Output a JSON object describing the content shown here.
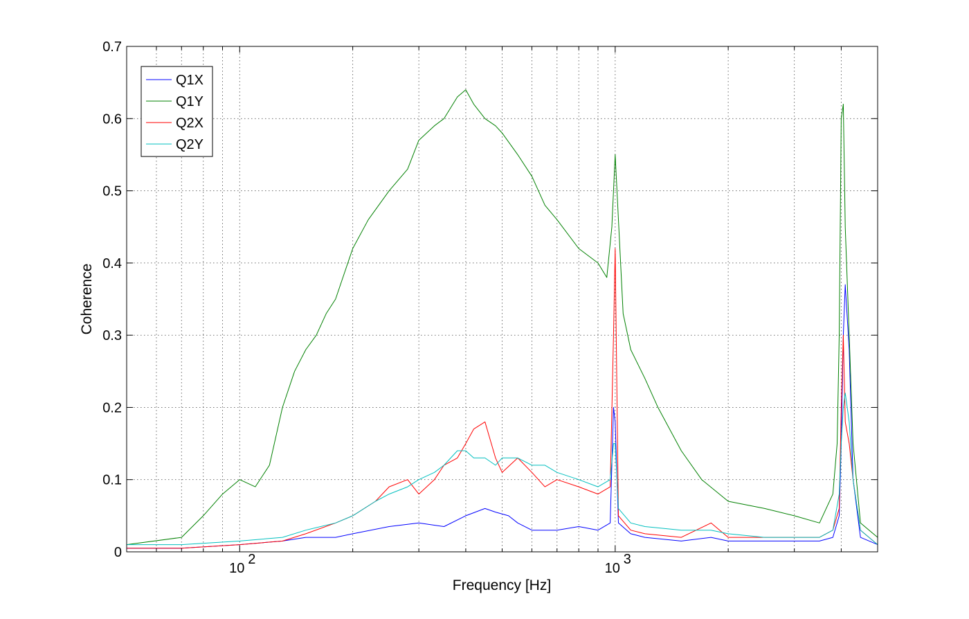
{
  "chart_data": {
    "type": "line",
    "title": "",
    "xlabel": "Frequency [Hz]",
    "ylabel": "Coherence",
    "xscale": "log",
    "xlim": [
      50,
      5000
    ],
    "ylim": [
      0,
      0.7
    ],
    "grid": true,
    "legend_position": "top-left",
    "y_ticks": [
      0,
      0.1,
      0.2,
      0.3,
      0.4,
      0.5,
      0.6,
      0.7
    ],
    "y_tick_labels": [
      "0",
      "0.1",
      "0.2",
      "0.3",
      "0.4",
      "0.5",
      "0.6",
      "0.7"
    ],
    "x_major_ticks": [
      100,
      1000
    ],
    "x_tick_labels": [
      {
        "base": "10",
        "exp": "2"
      },
      {
        "base": "10",
        "exp": "3"
      }
    ],
    "series": [
      {
        "name": "Q1X",
        "color": "#0000ff",
        "x": [
          50,
          70,
          100,
          130,
          150,
          180,
          200,
          250,
          300,
          350,
          400,
          450,
          480,
          520,
          550,
          600,
          650,
          700,
          800,
          900,
          970,
          990,
          1000,
          1020,
          1100,
          1200,
          1500,
          1800,
          2000,
          2500,
          3000,
          3500,
          3800,
          3950,
          4000,
          4050,
          4100,
          4200,
          4300,
          4500,
          5000
        ],
        "y": [
          0.005,
          0.005,
          0.01,
          0.015,
          0.02,
          0.02,
          0.025,
          0.035,
          0.04,
          0.035,
          0.05,
          0.06,
          0.055,
          0.05,
          0.04,
          0.03,
          0.03,
          0.03,
          0.035,
          0.03,
          0.04,
          0.2,
          0.18,
          0.04,
          0.025,
          0.02,
          0.015,
          0.02,
          0.015,
          0.015,
          0.015,
          0.015,
          0.02,
          0.05,
          0.15,
          0.3,
          0.37,
          0.28,
          0.1,
          0.02,
          0.01
        ]
      },
      {
        "name": "Q1Y",
        "color": "#008000",
        "x": [
          50,
          70,
          80,
          90,
          100,
          110,
          120,
          130,
          140,
          150,
          160,
          170,
          180,
          200,
          220,
          250,
          280,
          300,
          330,
          350,
          380,
          400,
          420,
          450,
          480,
          500,
          550,
          600,
          650,
          700,
          800,
          900,
          950,
          980,
          1000,
          1050,
          1100,
          1200,
          1300,
          1500,
          1700,
          2000,
          2500,
          3000,
          3500,
          3800,
          3900,
          3950,
          4000,
          4050,
          4100,
          4200,
          4300,
          4500,
          5000
        ],
        "y": [
          0.01,
          0.02,
          0.05,
          0.08,
          0.1,
          0.09,
          0.12,
          0.2,
          0.25,
          0.28,
          0.3,
          0.33,
          0.35,
          0.42,
          0.46,
          0.5,
          0.53,
          0.57,
          0.59,
          0.6,
          0.63,
          0.64,
          0.62,
          0.6,
          0.59,
          0.58,
          0.55,
          0.52,
          0.48,
          0.46,
          0.42,
          0.4,
          0.38,
          0.45,
          0.55,
          0.33,
          0.28,
          0.24,
          0.2,
          0.14,
          0.1,
          0.07,
          0.06,
          0.05,
          0.04,
          0.08,
          0.15,
          0.3,
          0.6,
          0.62,
          0.45,
          0.3,
          0.15,
          0.04,
          0.02
        ]
      },
      {
        "name": "Q2X",
        "color": "#ff0000",
        "x": [
          50,
          70,
          100,
          130,
          150,
          180,
          200,
          230,
          250,
          280,
          300,
          330,
          350,
          380,
          400,
          420,
          450,
          480,
          500,
          550,
          600,
          650,
          700,
          800,
          900,
          970,
          990,
          1000,
          1020,
          1100,
          1200,
          1500,
          1800,
          2000,
          2500,
          3000,
          3500,
          3800,
          3950,
          4000,
          4050,
          4100,
          4200,
          4300,
          4500,
          5000
        ],
        "y": [
          0.005,
          0.005,
          0.01,
          0.015,
          0.025,
          0.04,
          0.05,
          0.07,
          0.09,
          0.1,
          0.08,
          0.1,
          0.12,
          0.13,
          0.15,
          0.17,
          0.18,
          0.13,
          0.11,
          0.13,
          0.11,
          0.09,
          0.1,
          0.09,
          0.08,
          0.09,
          0.3,
          0.42,
          0.05,
          0.03,
          0.025,
          0.02,
          0.04,
          0.02,
          0.02,
          0.02,
          0.02,
          0.03,
          0.06,
          0.2,
          0.3,
          0.18,
          0.15,
          0.1,
          0.03,
          0.01
        ]
      },
      {
        "name": "Q2Y",
        "color": "#00bfbf",
        "x": [
          50,
          70,
          100,
          130,
          150,
          180,
          200,
          230,
          250,
          280,
          300,
          330,
          350,
          380,
          400,
          420,
          450,
          480,
          500,
          550,
          600,
          650,
          700,
          800,
          900,
          970,
          990,
          1000,
          1020,
          1100,
          1200,
          1500,
          1800,
          2000,
          2500,
          3000,
          3500,
          3800,
          3950,
          4000,
          4050,
          4100,
          4200,
          4300,
          4500,
          5000
        ],
        "y": [
          0.01,
          0.01,
          0.015,
          0.02,
          0.03,
          0.04,
          0.05,
          0.07,
          0.08,
          0.09,
          0.1,
          0.11,
          0.12,
          0.14,
          0.14,
          0.13,
          0.13,
          0.12,
          0.13,
          0.13,
          0.12,
          0.12,
          0.11,
          0.1,
          0.09,
          0.1,
          0.15,
          0.15,
          0.06,
          0.04,
          0.035,
          0.03,
          0.03,
          0.025,
          0.02,
          0.02,
          0.02,
          0.03,
          0.08,
          0.15,
          0.2,
          0.22,
          0.18,
          0.1,
          0.03,
          0.01
        ]
      }
    ]
  }
}
